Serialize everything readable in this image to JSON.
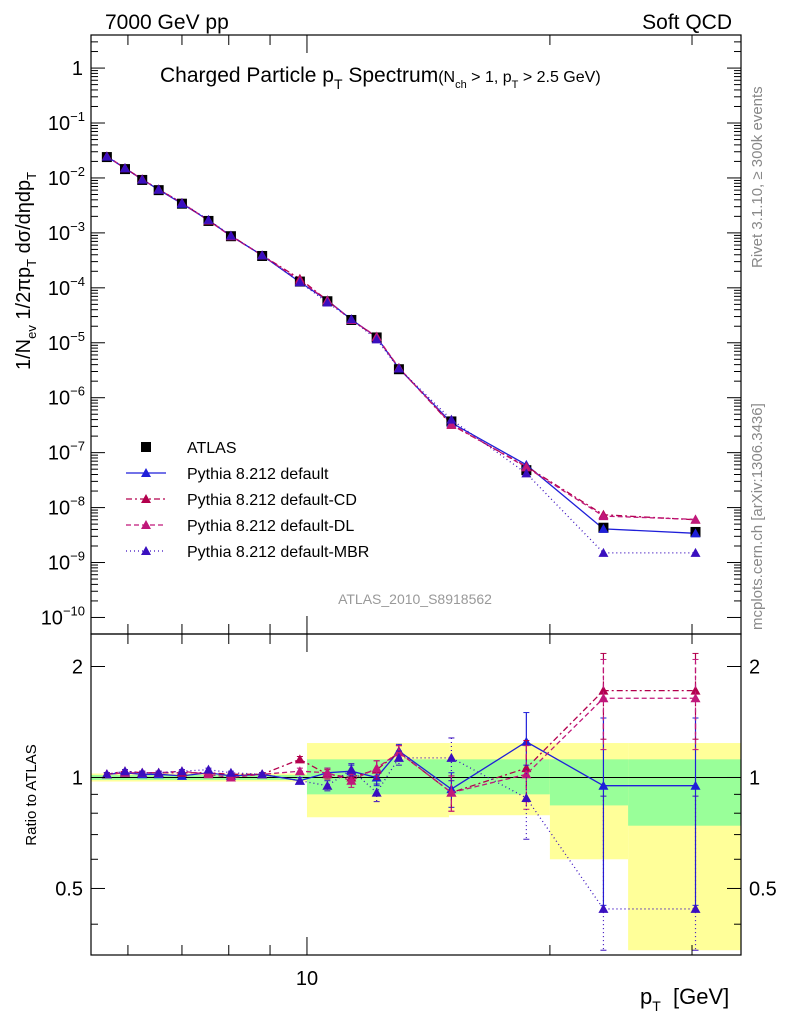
{
  "header": {
    "energy": "7000 GeV pp",
    "process": "Soft QCD"
  },
  "side_labels": {
    "rivet": "Rivet 3.1.10, ≥ 300k events",
    "mcplots": "mcplots.cern.ch [arXiv:1306.3436]"
  },
  "chart_data": [
    {
      "type": "scatter",
      "panel": "main",
      "title": "Charged Particle p_T Spectrum",
      "title_main": "Charged Particle p",
      "title_main_sub": "T",
      "title_main_rest": " Spectrum",
      "title_cut_1": "(N",
      "title_cut_1_sub": "ch",
      "title_cut_2": " > 1, p",
      "title_cut_2_sub": "T",
      "title_cut_3": " > 2.5 GeV)",
      "ylabel": "1/N_ev 1/2πp_T dσ/dηdp_T",
      "ylabel_parts": [
        "1/N",
        "ev",
        " 1/2πp",
        "T",
        " dσ/dηdp",
        "T"
      ],
      "analysis_id": "ATLAS_2010_S8918562",
      "xscale": "log",
      "yscale": "log",
      "xlim": [
        5.4,
        34.5
      ],
      "ylim": [
        5e-11,
        4
      ],
      "y_ticks": [
        {
          "v": 1,
          "label": "1"
        },
        {
          "v": 0.1,
          "label": "10",
          "exp": "−1"
        },
        {
          "v": 0.01,
          "label": "10",
          "exp": "−2"
        },
        {
          "v": 0.001,
          "label": "10",
          "exp": "−3"
        },
        {
          "v": 0.0001,
          "label": "10",
          "exp": "−4"
        },
        {
          "v": 1e-05,
          "label": "10",
          "exp": "−5"
        },
        {
          "v": 1e-06,
          "label": "10",
          "exp": "−6"
        },
        {
          "v": 1e-07,
          "label": "10",
          "exp": "−7"
        },
        {
          "v": 1e-08,
          "label": "10",
          "exp": "−8"
        },
        {
          "v": 1e-09,
          "label": "10",
          "exp": "−9"
        },
        {
          "v": 1e-10,
          "label": "10",
          "exp": "−10"
        }
      ],
      "x": [
        5.65,
        5.95,
        6.25,
        6.55,
        7.0,
        7.55,
        8.05,
        8.8,
        9.8,
        10.6,
        11.35,
        12.2,
        13.0,
        15.1,
        18.7,
        23.3,
        30.3
      ],
      "series": [
        {
          "name": "ATLAS",
          "marker": "square",
          "color": "#000000",
          "values": [
            0.024,
            0.0145,
            0.0092,
            0.006,
            0.0034,
            0.00165,
            0.00087,
            0.00038,
            0.00013,
            5.7e-05,
            2.6e-05,
            1.25e-05,
            3.3e-06,
            3.7e-07,
            4.8e-08,
            4.3e-09,
            3.6e-09
          ]
        },
        {
          "name": "Pythia 8.212 default",
          "marker": "triangle",
          "color": "#1f1fd9",
          "dash": "none",
          "values": [
            0.0245,
            0.015,
            0.0094,
            0.0061,
            0.0034,
            0.0017,
            0.00088,
            0.00039,
            0.000127,
            5.9e-05,
            2.65e-05,
            1.27e-05,
            3.4e-06,
            3.5e-07,
            6e-08,
            4.1e-09,
            3.4e-09
          ]
        },
        {
          "name": "Pythia 8.212 default-CD",
          "marker": "triangle",
          "color": "#b3004d",
          "dash": "6,3,2,3",
          "values": [
            0.0248,
            0.0151,
            0.0095,
            0.0062,
            0.0035,
            0.00169,
            0.00089,
            0.00039,
            0.000146,
            5.9e-05,
            2.6e-05,
            1.27e-05,
            3.5e-06,
            3.2e-07,
            5.6e-08,
            7.4e-09,
            6e-09
          ]
        },
        {
          "name": "Pythia 8.212 default-DL",
          "marker": "triangle",
          "color": "#c0187a",
          "dash": "5,3",
          "values": [
            0.0247,
            0.0151,
            0.0094,
            0.0062,
            0.0035,
            0.00168,
            0.00087,
            0.00039,
            0.000135,
            5.9e-05,
            2.6e-05,
            1.3e-05,
            3.5e-06,
            3.3e-07,
            5.4e-08,
            7e-09,
            6.1e-09
          ]
        },
        {
          "name": "Pythia 8.212 default-MBR",
          "marker": "triangle",
          "color": "#3a0fbf",
          "dash": "1,3",
          "values": [
            0.0246,
            0.0151,
            0.0093,
            0.0062,
            0.0035,
            0.00173,
            0.00089,
            0.00039,
            0.000127,
            5.4e-05,
            2.7e-05,
            1.15e-05,
            3.4e-06,
            4e-07,
            4.2e-08,
            1.5e-09,
            1.5e-09
          ]
        }
      ]
    },
    {
      "type": "scatter",
      "panel": "ratio",
      "ylabel": "Ratio to ATLAS",
      "xlabel_main": "p",
      "xlabel_sub": "T",
      "xlabel_rest": "  [GeV]",
      "xscale": "log",
      "yscale": "log",
      "xlim": [
        5.4,
        34.5
      ],
      "ylim": [
        0.33,
        2.45
      ],
      "x_tick_labels": [
        {
          "v": 10,
          "label": "10"
        }
      ],
      "y_tick_labels": [
        {
          "v": 2,
          "label": "2"
        },
        {
          "v": 1,
          "label": "1"
        },
        {
          "v": 0.5,
          "label": "0.5"
        }
      ],
      "reference_line": 1,
      "bands": {
        "bins": [
          [
            5.4,
            10.0
          ],
          [
            10.0,
            15.0
          ],
          [
            15.0,
            20.0
          ],
          [
            20.0,
            25.0
          ],
          [
            25.0,
            34.5
          ]
        ],
        "stat": [
          [
            0.985,
            1.015
          ],
          [
            0.9,
            1.12
          ],
          [
            0.9,
            1.12
          ],
          [
            0.84,
            1.12
          ],
          [
            0.74,
            1.12
          ]
        ],
        "total": [
          [
            0.975,
            1.025
          ],
          [
            0.78,
            1.24
          ],
          [
            0.79,
            1.24
          ],
          [
            0.6,
            1.24
          ],
          [
            0.34,
            1.24
          ]
        ]
      },
      "x": [
        5.65,
        5.95,
        6.25,
        6.55,
        7.0,
        7.55,
        8.05,
        8.8,
        9.8,
        10.6,
        11.35,
        12.2,
        13.0,
        15.1,
        18.7,
        23.3,
        30.3
      ],
      "series": [
        {
          "name": "Pythia 8.212 default",
          "values": [
            1.02,
            1.03,
            1.02,
            1.02,
            1.01,
            1.03,
            1.01,
            1.02,
            0.98,
            1.03,
            1.04,
            1.0,
            1.18,
            0.93,
            1.25,
            0.95,
            0.95
          ],
          "err": [
            0.01,
            0.01,
            0.01,
            0.01,
            0.01,
            0.01,
            0.01,
            0.01,
            0.02,
            0.03,
            0.04,
            0.05,
            0.05,
            0.1,
            0.25,
            0.5,
            0.5
          ]
        },
        {
          "name": "Pythia 8.212 default-CD",
          "values": [
            1.02,
            1.04,
            1.03,
            1.03,
            1.03,
            1.03,
            1.02,
            1.02,
            1.12,
            1.02,
            1.0,
            1.05,
            1.17,
            0.91,
            1.06,
            1.72,
            1.72
          ],
          "err": [
            0.01,
            0.01,
            0.01,
            0.01,
            0.01,
            0.01,
            0.01,
            0.01,
            0.02,
            0.03,
            0.04,
            0.06,
            0.05,
            0.1,
            0.2,
            0.45,
            0.45
          ]
        },
        {
          "name": "Pythia 8.212 default-DL",
          "values": [
            1.02,
            1.03,
            1.03,
            1.03,
            1.04,
            1.02,
            1.0,
            1.02,
            1.04,
            1.03,
            0.98,
            1.06,
            1.17,
            0.91,
            1.02,
            1.64,
            1.64
          ],
          "err": [
            0.01,
            0.01,
            0.01,
            0.01,
            0.01,
            0.01,
            0.01,
            0.01,
            0.02,
            0.03,
            0.04,
            0.05,
            0.05,
            0.1,
            0.2,
            0.45,
            0.45
          ]
        },
        {
          "name": "Pythia 8.212 default-MBR",
          "values": [
            1.02,
            1.04,
            1.03,
            1.03,
            1.04,
            1.05,
            1.03,
            1.02,
            0.98,
            0.95,
            1.05,
            0.91,
            1.13,
            1.13,
            0.88,
            0.44,
            0.44
          ],
          "err": [
            0.01,
            0.01,
            0.01,
            0.01,
            0.01,
            0.01,
            0.01,
            0.01,
            0.02,
            0.03,
            0.04,
            0.05,
            0.05,
            0.15,
            0.2,
            0.45,
            0.45
          ]
        }
      ]
    }
  ],
  "legend": {
    "placement": "lower-left",
    "entries": [
      {
        "label": "ATLAS",
        "marker": "square",
        "color": "#000000",
        "dash": "none",
        "line": false
      },
      {
        "label": "Pythia 8.212 default",
        "marker": "triangle",
        "color": "#1f1fd9",
        "dash": "none",
        "line": true
      },
      {
        "label": "Pythia 8.212 default-CD",
        "marker": "triangle",
        "color": "#b3004d",
        "dash": "6,3,2,3",
        "line": true
      },
      {
        "label": "Pythia 8.212 default-DL",
        "marker": "triangle",
        "color": "#c0187a",
        "dash": "5,3",
        "line": true
      },
      {
        "label": "Pythia 8.212 default-MBR",
        "marker": "triangle",
        "color": "#3a0fbf",
        "dash": "1,3",
        "line": true
      }
    ]
  },
  "colors": {
    "band_stat": "#99ff99",
    "band_total": "#ffff99",
    "axis": "#000000",
    "analysis_label": "#999999",
    "side_label": "#888888"
  }
}
